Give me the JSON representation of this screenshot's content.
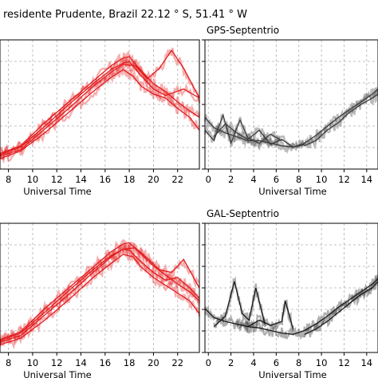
{
  "figure": {
    "suptitle": "residente Prudente, Brazil 22.12$^\\circ$S, 51.41$^\\circ$W",
    "suptitle_display": "residente Prudente, Brazil 22.12 ° S, 51.41 ° W"
  },
  "chart_data": [
    {
      "type": "line",
      "title": "",
      "xlabel": "Universal Time",
      "xticks": [
        "8",
        "10",
        "12",
        "14",
        "16",
        "18",
        "20",
        "22"
      ],
      "xlim": [
        7.3,
        23.8
      ],
      "ylim": [
        0,
        1
      ],
      "grid": true,
      "color": "#e31a1c",
      "series": [
        {
          "x": [
            7.3,
            9,
            11,
            13,
            15,
            16.5,
            17.5,
            18,
            19,
            20,
            21,
            22,
            23,
            23.8
          ],
          "y": [
            0.12,
            0.18,
            0.36,
            0.52,
            0.68,
            0.8,
            0.86,
            0.87,
            0.76,
            0.66,
            0.6,
            0.52,
            0.45,
            0.4
          ]
        },
        {
          "x": [
            7.3,
            9,
            11,
            13,
            15,
            16.5,
            17.5,
            18.5,
            19.5,
            20.5,
            21.5,
            22.5,
            23.8
          ],
          "y": [
            0.1,
            0.15,
            0.31,
            0.47,
            0.64,
            0.75,
            0.81,
            0.8,
            0.7,
            0.78,
            0.92,
            0.78,
            0.55
          ]
        },
        {
          "x": [
            7.3,
            9,
            11,
            13,
            15,
            16.5,
            17.5,
            18.3,
            19,
            20,
            21,
            22,
            23,
            23.8
          ],
          "y": [
            0.08,
            0.14,
            0.28,
            0.44,
            0.6,
            0.71,
            0.77,
            0.72,
            0.64,
            0.58,
            0.55,
            0.47,
            0.4,
            0.3
          ]
        },
        {
          "x": [
            7.3,
            9,
            11,
            13,
            15,
            16.5,
            17.5,
            18,
            19,
            20,
            21,
            22.5,
            23.8
          ],
          "y": [
            0.11,
            0.17,
            0.33,
            0.5,
            0.66,
            0.77,
            0.82,
            0.83,
            0.72,
            0.62,
            0.57,
            0.62,
            0.55
          ]
        }
      ]
    },
    {
      "type": "line",
      "title": "GPS-Septentrio",
      "xlabel": "Universal Time",
      "xticks": [
        "0",
        "2",
        "4",
        "6",
        "8",
        "10",
        "12",
        "14"
      ],
      "xlim": [
        -0.3,
        15
      ],
      "ylim": [
        0,
        1
      ],
      "grid": true,
      "color": "#3c3c3c",
      "series": [
        {
          "x": [
            -0.3,
            0.5,
            1.5,
            2.5,
            3.5,
            4.5,
            5.5,
            6.5,
            7.5,
            8.5,
            9.5,
            10.5,
            11.5,
            12.5,
            13.5,
            14.5,
            15
          ],
          "y": [
            0.4,
            0.32,
            0.28,
            0.25,
            0.22,
            0.22,
            0.2,
            0.18,
            0.17,
            0.2,
            0.26,
            0.33,
            0.4,
            0.46,
            0.52,
            0.58,
            0.62
          ]
        },
        {
          "x": [
            -0.3,
            0.5,
            1.3,
            2,
            2.8,
            3.5,
            4.5,
            5.5,
            6.5
          ],
          "y": [
            0.3,
            0.22,
            0.42,
            0.2,
            0.38,
            0.24,
            0.2,
            0.27,
            0.22
          ]
        },
        {
          "x": [
            0.5,
            1.5,
            2.5,
            3.5,
            4.5,
            5.5,
            6.5,
            7.5,
            8.5
          ],
          "y": [
            0.25,
            0.35,
            0.28,
            0.23,
            0.3,
            0.19,
            0.23,
            0.17,
            0.19
          ]
        },
        {
          "x": [
            8.5,
            9.5,
            10.5,
            11.5,
            12.5,
            13.5,
            14.5,
            15
          ],
          "y": [
            0.18,
            0.22,
            0.3,
            0.36,
            0.44,
            0.5,
            0.55,
            0.58
          ]
        }
      ]
    },
    {
      "type": "line",
      "title": "",
      "xlabel": "Universal Time",
      "xticks": [
        "8",
        "10",
        "12",
        "14",
        "16",
        "18",
        "20",
        "22"
      ],
      "xlim": [
        7.3,
        23.8
      ],
      "ylim": [
        0,
        1
      ],
      "grid": true,
      "color": "#e31a1c",
      "series": [
        {
          "x": [
            7.3,
            9,
            11,
            13,
            15,
            16.5,
            17.5,
            18,
            19,
            20,
            21,
            22,
            23,
            23.8
          ],
          "y": [
            0.1,
            0.16,
            0.34,
            0.5,
            0.66,
            0.78,
            0.84,
            0.85,
            0.76,
            0.67,
            0.6,
            0.53,
            0.47,
            0.4
          ]
        },
        {
          "x": [
            7.3,
            9,
            11,
            13,
            15,
            16.5,
            17.5,
            18.5,
            19.5,
            20.5,
            21.5,
            22.5,
            23.8
          ],
          "y": [
            0.08,
            0.13,
            0.29,
            0.45,
            0.62,
            0.74,
            0.8,
            0.81,
            0.73,
            0.64,
            0.62,
            0.72,
            0.5
          ]
        },
        {
          "x": [
            7.3,
            9,
            11,
            13,
            15,
            16.5,
            17.5,
            18.3,
            19,
            20,
            21,
            22,
            23,
            23.8
          ],
          "y": [
            0.06,
            0.11,
            0.25,
            0.41,
            0.58,
            0.69,
            0.76,
            0.74,
            0.66,
            0.58,
            0.52,
            0.46,
            0.4,
            0.3
          ]
        },
        {
          "x": [
            7.3,
            9,
            11,
            13,
            15,
            16.5,
            17.5,
            18,
            19,
            20,
            21,
            22,
            23,
            23.8
          ],
          "y": [
            0.09,
            0.15,
            0.31,
            0.48,
            0.64,
            0.75,
            0.8,
            0.79,
            0.7,
            0.62,
            0.56,
            0.58,
            0.5,
            0.42
          ]
        }
      ]
    },
    {
      "type": "line",
      "title": "GAL-Septentrio",
      "xlabel": "Universal Time",
      "xticks": [
        "0",
        "2",
        "4",
        "6",
        "8",
        "10",
        "12",
        "14"
      ],
      "xlim": [
        -0.3,
        15
      ],
      "ylim": [
        0,
        1
      ],
      "grid": true,
      "color": "#1a1a1a",
      "series": [
        {
          "x": [
            -0.3,
            0.5,
            1.5,
            2.5,
            3.5,
            4.5,
            5.5,
            6.5,
            7.5,
            8.5,
            9.5,
            10.5,
            11.5,
            12.5,
            13.5,
            14.5,
            15
          ],
          "y": [
            0.34,
            0.27,
            0.24,
            0.22,
            0.2,
            0.19,
            0.17,
            0.15,
            0.14,
            0.17,
            0.22,
            0.28,
            0.35,
            0.41,
            0.47,
            0.53,
            0.57
          ]
        },
        {
          "x": [
            0.5,
            1.5,
            2.3,
            3.0,
            3.6,
            4.2,
            5.0
          ],
          "y": [
            0.2,
            0.28,
            0.55,
            0.3,
            0.25,
            0.5,
            0.22
          ]
        },
        {
          "x": [
            2.5,
            3.5,
            4.5,
            5.5,
            6.5,
            6.8,
            7.5
          ],
          "y": [
            0.22,
            0.2,
            0.25,
            0.21,
            0.24,
            0.4,
            0.18
          ]
        },
        {
          "x": [
            8.5,
            9.5,
            10.5,
            11.5,
            12.5,
            13.5,
            14.5,
            15
          ],
          "y": [
            0.14,
            0.18,
            0.24,
            0.31,
            0.38,
            0.45,
            0.5,
            0.55
          ]
        }
      ]
    }
  ]
}
